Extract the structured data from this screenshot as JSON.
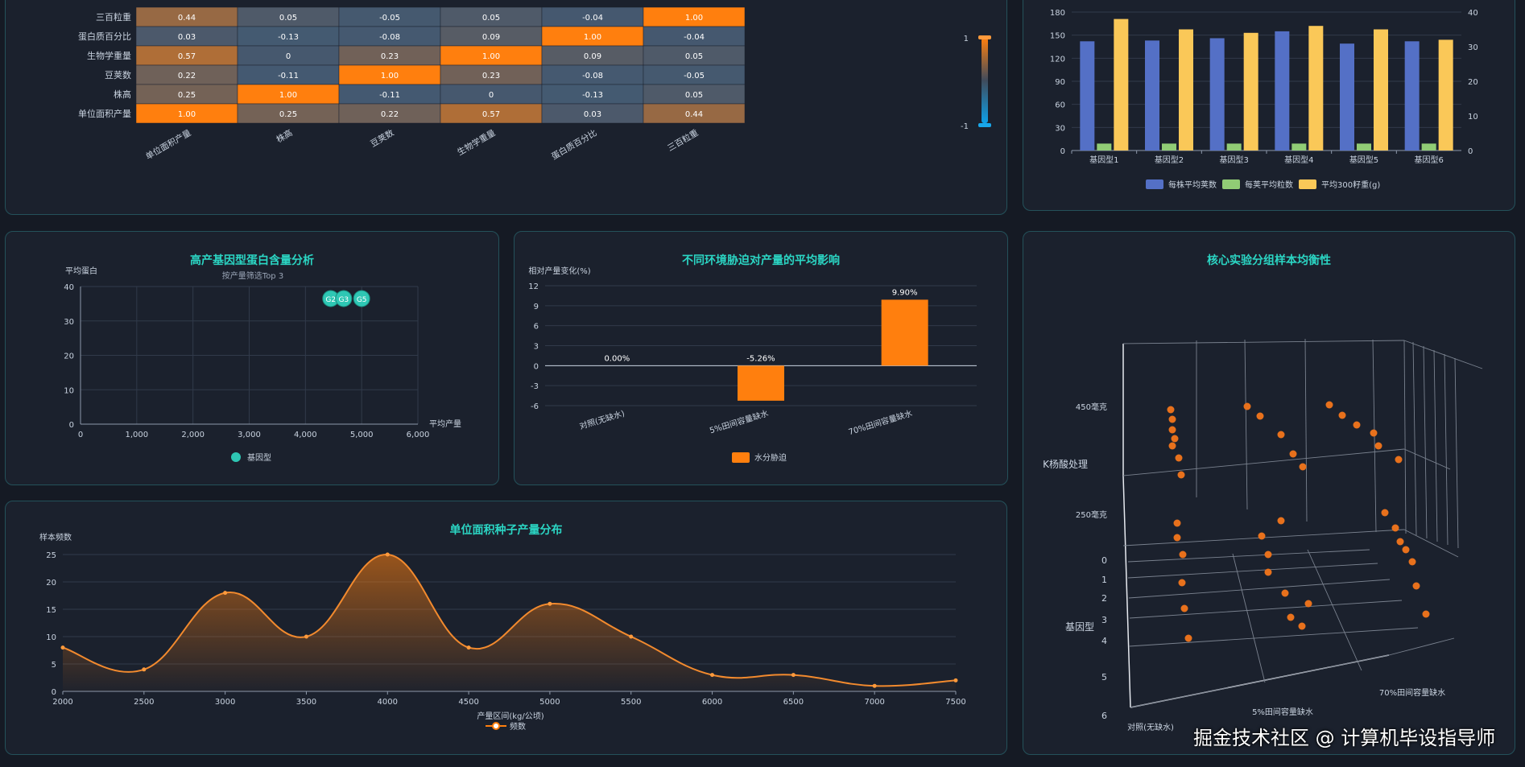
{
  "colors": {
    "orange": "#ff7f0e",
    "teal": "#2ec7b4",
    "blue": "#5470c6",
    "green": "#91cc75",
    "yellow": "#fac858",
    "title": "#2bd6c4"
  },
  "watermark": "掘金技术社区 @ 计算机毕设指导师",
  "chart_data": [
    {
      "id": "corr",
      "type": "heatmap",
      "title": "",
      "rows": [
        "三百粒重",
        "蛋白质百分比",
        "生物学重量",
        "豆荚数",
        "株高",
        "单位面积产量"
      ],
      "cols": [
        "单位面积产量",
        "株高",
        "豆荚数",
        "生物学重量",
        "蛋白质百分比",
        "三百粒重"
      ],
      "matrix": [
        [
          "0.44",
          "0.05",
          "-0.05",
          "0.05",
          "-0.04",
          "1.00"
        ],
        [
          "0.03",
          "-0.13",
          "-0.08",
          "0.09",
          "1.00",
          "-0.04"
        ],
        [
          "0.57",
          "0",
          "0.23",
          "1.00",
          "0.09",
          "0.05"
        ],
        [
          "0.22",
          "-0.11",
          "1.00",
          "0.23",
          "-0.08",
          "-0.05"
        ],
        [
          "0.25",
          "1.00",
          "-0.11",
          "0",
          "-0.13",
          "0.05"
        ],
        [
          "1.00",
          "0.25",
          "0.22",
          "0.57",
          "0.03",
          "0.44"
        ]
      ],
      "scale": {
        "max": "1",
        "min": "-1"
      }
    },
    {
      "id": "genotype",
      "type": "bar",
      "categories": [
        "基因型1",
        "基因型2",
        "基因型3",
        "基因型4",
        "基因型5",
        "基因型6"
      ],
      "series": [
        {
          "name": "每株平均荚数",
          "axis": "left",
          "values": [
            142,
            143,
            146,
            155,
            139,
            142
          ]
        },
        {
          "name": "每荚平均粒数",
          "axis": "right",
          "values": [
            2,
            2,
            2,
            2,
            2,
            2
          ]
        },
        {
          "name": "平均300籽重(g)",
          "axis": "right",
          "values": [
            38,
            35,
            34,
            36,
            35,
            32
          ]
        }
      ],
      "yleft": {
        "ticks": [
          "0",
          "30",
          "60",
          "90",
          "120",
          "150",
          "180"
        ],
        "max": 180
      },
      "yright": {
        "ticks": [
          "0",
          "10",
          "20",
          "30",
          "40"
        ],
        "max": 40
      }
    },
    {
      "id": "protein",
      "type": "scatter",
      "title": "高产基因型蛋白含量分析",
      "subtitle": "按产量筛选Top 3",
      "xlabel": "平均产量",
      "ylabel": "平均蛋白",
      "xlim": [
        0,
        6000
      ],
      "ylim": [
        0,
        40
      ],
      "xticks": [
        "0",
        "1,000",
        "2,000",
        "3,000",
        "4,000",
        "5,000",
        "6,000"
      ],
      "yticks": [
        "0",
        "10",
        "20",
        "30",
        "40"
      ],
      "points": [
        {
          "label": "G2",
          "x": 4450,
          "y": 36.5
        },
        {
          "label": "G3",
          "x": 4680,
          "y": 36.5
        },
        {
          "label": "G5",
          "x": 5000,
          "y": 36.5
        }
      ],
      "legend": "基因型"
    },
    {
      "id": "stress",
      "type": "bar",
      "title": "不同环境胁迫对产量的平均影响",
      "ylabel": "相对产量变化(%)",
      "ylim": [
        -6,
        12
      ],
      "yticks": [
        "12",
        "9",
        "6",
        "3",
        "0",
        "-3",
        "-6"
      ],
      "categories": [
        "对照(无缺水)",
        "5%田间容量缺水",
        "70%田间容量缺水"
      ],
      "values": [
        0,
        -5.26,
        9.9
      ],
      "labels": [
        "0.00%",
        "-5.26%",
        "9.90%"
      ],
      "legend": "水分胁迫"
    },
    {
      "id": "distribution",
      "type": "area",
      "title": "单位面积种子产量分布",
      "xlabel": "产量区间(kg/公顷)",
      "ylabel": "样本频数",
      "x": [
        2000,
        2500,
        3000,
        3500,
        4000,
        4500,
        5000,
        5500,
        6000,
        6500,
        7000,
        7500
      ],
      "values": [
        8,
        4,
        18,
        10,
        25,
        8,
        16,
        10,
        3,
        3,
        1,
        2
      ],
      "xticks": [
        "2000",
        "2500",
        "3000",
        "3500",
        "4000",
        "4500",
        "5000",
        "5500",
        "6000",
        "6500",
        "7000",
        "7500"
      ],
      "yticks": [
        "0",
        "5",
        "10",
        "15",
        "20",
        "25"
      ],
      "ylim": [
        0,
        25
      ],
      "legend": "频数"
    },
    {
      "id": "balance3d",
      "type": "scatter",
      "title": "核心实验分组样本均衡性",
      "zlabel": "K杨酸处理",
      "ylabel": "基因型",
      "zticks": [
        "450毫克",
        "250毫克"
      ],
      "yticks": [
        "0",
        "1",
        "2",
        "3",
        "4",
        "5",
        "6"
      ],
      "xticks": [
        "对照(无缺水)",
        "5%田间容量缺水",
        "70%田间容量缺水"
      ]
    }
  ]
}
